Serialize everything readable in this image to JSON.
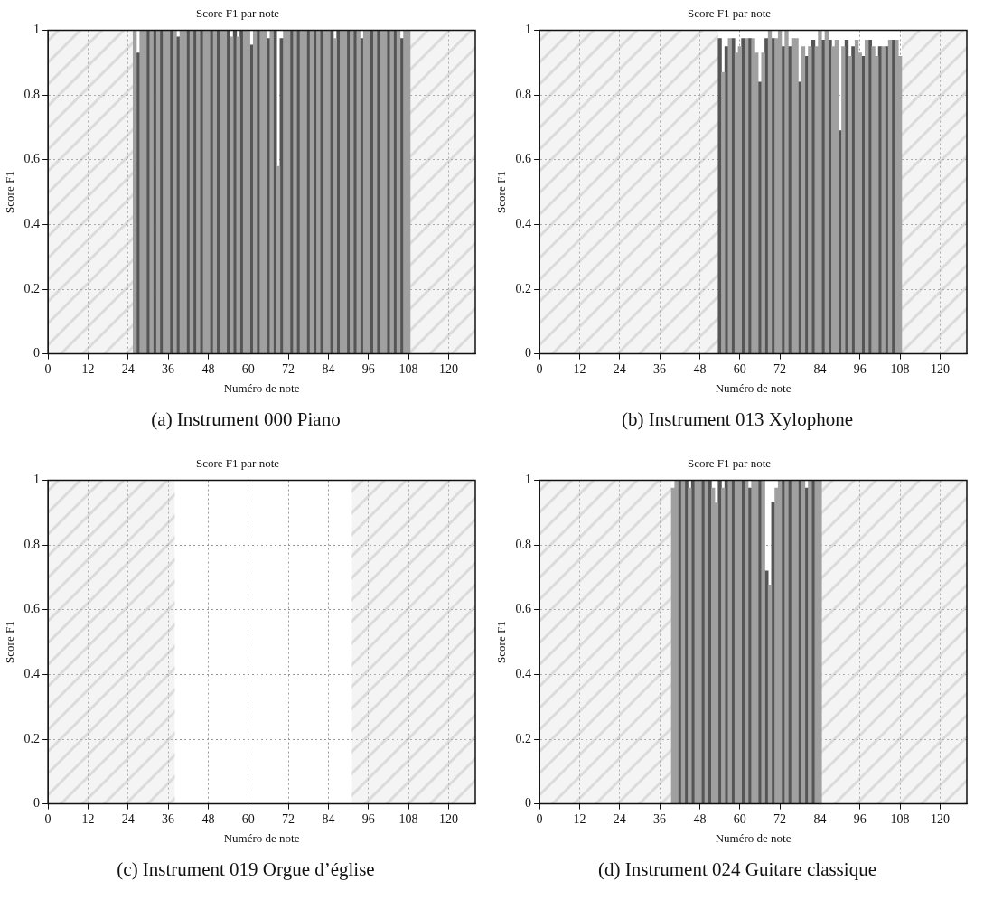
{
  "chart_data": [
    {
      "type": "bar",
      "title": "Score F1 par note",
      "xlabel": "Numéro de note",
      "ylabel": "Score F1",
      "annotations": [
        "(a) Instrument 000 Piano"
      ],
      "xlim": [
        0,
        128
      ],
      "ylim": [
        0,
        1
      ],
      "xticks": [
        0,
        12,
        24,
        36,
        48,
        60,
        72,
        84,
        96,
        108,
        120
      ],
      "yticks": [
        0,
        0.2,
        0.4,
        0.6,
        0.8,
        1
      ],
      "grid": true,
      "bands": [
        {
          "axis": "x",
          "from": 0,
          "to": 25.5,
          "color": "#dcdcdc"
        },
        {
          "axis": "x",
          "from": 108.5,
          "to": 128,
          "color": "#dcdcdc"
        }
      ],
      "series": [
        {
          "color": "#a0a0a0",
          "x": [
            26,
            28,
            29,
            31,
            33,
            35,
            36,
            38,
            40,
            41,
            43,
            45,
            47,
            48,
            50,
            52,
            53,
            55,
            57,
            59,
            60,
            62,
            64,
            65,
            67,
            69,
            71,
            72,
            74,
            76,
            77,
            79,
            81,
            83,
            84,
            86,
            88,
            89,
            91,
            93,
            95,
            96,
            98,
            100,
            101,
            103,
            105,
            107,
            108
          ],
          "values": [
            1,
            1,
            1,
            1,
            1,
            1,
            1,
            1,
            1,
            1,
            1,
            1,
            1,
            1,
            1,
            1,
            1,
            0.98,
            0.98,
            1,
            1,
            1,
            1,
            1,
            1,
            0.58,
            1,
            1,
            1,
            1,
            1,
            1,
            1,
            1,
            1,
            0.975,
            1,
            1,
            1,
            1,
            1,
            1,
            1,
            1,
            1,
            1,
            1,
            1,
            1
          ]
        },
        {
          "color": "#555555",
          "x": [
            27,
            30,
            32,
            34,
            37,
            39,
            42,
            44,
            46,
            49,
            51,
            54,
            56,
            58,
            61,
            63,
            66,
            68,
            70,
            73,
            75,
            78,
            80,
            82,
            85,
            87,
            90,
            92,
            94,
            97,
            99,
            102,
            104,
            106
          ],
          "values": [
            0.93,
            1,
            1,
            1,
            1,
            0.98,
            1,
            1,
            1,
            1,
            1,
            1,
            1,
            1,
            0.955,
            1,
            0.975,
            1,
            0.975,
            1,
            1,
            1,
            1,
            1,
            1,
            1,
            1,
            1,
            0.975,
            1,
            1,
            1,
            1,
            0.975
          ]
        }
      ]
    },
    {
      "type": "bar",
      "title": "Score F1 par note",
      "xlabel": "Numéro de note",
      "ylabel": "Score F1",
      "annotations": [
        "(b) Instrument 013 Xylophone"
      ],
      "xlim": [
        0,
        128
      ],
      "ylim": [
        0,
        1
      ],
      "xticks": [
        0,
        12,
        24,
        36,
        48,
        60,
        72,
        84,
        96,
        108,
        120
      ],
      "yticks": [
        0,
        0.2,
        0.4,
        0.6,
        0.8,
        1
      ],
      "grid": true,
      "bands": [
        {
          "axis": "x",
          "from": 0,
          "to": 53.5,
          "color": "#dcdcdc"
        },
        {
          "axis": "x",
          "from": 108.5,
          "to": 128,
          "color": "#dcdcdc"
        }
      ],
      "series": [
        {
          "color": "#a0a0a0",
          "x": [
            55,
            57,
            59,
            60,
            62,
            64,
            65,
            67,
            69,
            71,
            72,
            74,
            76,
            77,
            79,
            81,
            83,
            84,
            86,
            88,
            89,
            91,
            93,
            95,
            96,
            98,
            100,
            101,
            103,
            105,
            107,
            108
          ],
          "values": [
            0.87,
            0.975,
            0.93,
            0.95,
            0.975,
            0.975,
            0.93,
            0.93,
            1,
            0.975,
            1,
            1,
            0.975,
            0.975,
            0.95,
            0.95,
            0.95,
            1,
            1,
            0.95,
            0.97,
            0.95,
            0.92,
            0.97,
            0.93,
            0.97,
            0.95,
            0.92,
            0.95,
            0.97,
            0.97,
            0.92
          ]
        },
        {
          "color": "#555555",
          "x": [
            54,
            56,
            58,
            61,
            63,
            66,
            68,
            70,
            73,
            75,
            78,
            80,
            82,
            85,
            87,
            90,
            92,
            94,
            97,
            99,
            102,
            104,
            106
          ],
          "values": [
            0.975,
            0.95,
            0.975,
            0.975,
            0.975,
            0.84,
            0.975,
            0.975,
            0.95,
            0.95,
            0.84,
            0.92,
            0.97,
            0.97,
            0.97,
            0.69,
            0.97,
            0.95,
            0.92,
            0.97,
            0.95,
            0.95,
            0.97
          ]
        }
      ]
    },
    {
      "type": "bar",
      "title": "Score F1 par note",
      "xlabel": "Numéro de note",
      "ylabel": "Score F1",
      "annotations": [
        "(c) Instrument 019 Orgue d’église"
      ],
      "xlim": [
        0,
        128
      ],
      "ylim": [
        0,
        1
      ],
      "xticks": [
        0,
        12,
        24,
        36,
        48,
        60,
        72,
        84,
        96,
        108,
        120
      ],
      "yticks": [
        0,
        0.2,
        0.4,
        0.6,
        0.8,
        1
      ],
      "grid": true,
      "bands": [
        {
          "axis": "x",
          "from": 0,
          "to": 38,
          "color": "#dcdcdc"
        },
        {
          "axis": "x",
          "from": 91,
          "to": 128,
          "color": "#dcdcdc"
        }
      ]
    },
    {
      "type": "bar",
      "title": "Score F1 par note",
      "xlabel": "Numéro de note",
      "ylabel": "Score F1",
      "annotations": [
        "(d) Instrument 024 Guitare classique"
      ],
      "xlim": [
        0,
        128
      ],
      "ylim": [
        0,
        1
      ],
      "xticks": [
        0,
        12,
        24,
        36,
        48,
        60,
        72,
        84,
        96,
        108,
        120
      ],
      "yticks": [
        0,
        0.2,
        0.4,
        0.6,
        0.8,
        1
      ],
      "grid": true,
      "bands": [
        {
          "axis": "x",
          "from": 0,
          "to": 39.5,
          "color": "#dcdcdc"
        },
        {
          "axis": "x",
          "from": 84.5,
          "to": 128,
          "color": "#dcdcdc"
        }
      ],
      "series": [
        {
          "color": "#a0a0a0",
          "x": [
            40,
            41,
            43,
            45,
            47,
            48,
            50,
            52,
            53,
            55,
            57,
            59,
            60,
            62,
            64,
            65,
            67,
            69,
            71,
            72,
            74,
            76,
            77,
            79,
            81,
            83,
            84
          ],
          "values": [
            0.976,
            1,
            1,
            0.976,
            1,
            1,
            1,
            0.976,
            0.93,
            0.976,
            1,
            1,
            1,
            1,
            1,
            1,
            1,
            0.677,
            0.976,
            1,
            1,
            1,
            1,
            1,
            1,
            1,
            1
          ]
        },
        {
          "color": "#555555",
          "x": [
            42,
            44,
            46,
            49,
            51,
            54,
            56,
            58,
            61,
            63,
            66,
            68,
            70,
            73,
            75,
            78,
            80,
            82
          ],
          "values": [
            1,
            1,
            1,
            1,
            1,
            1,
            1,
            1,
            1,
            0.976,
            1,
            0.72,
            0.934,
            1,
            1,
            1,
            0.976,
            1
          ]
        }
      ]
    }
  ]
}
